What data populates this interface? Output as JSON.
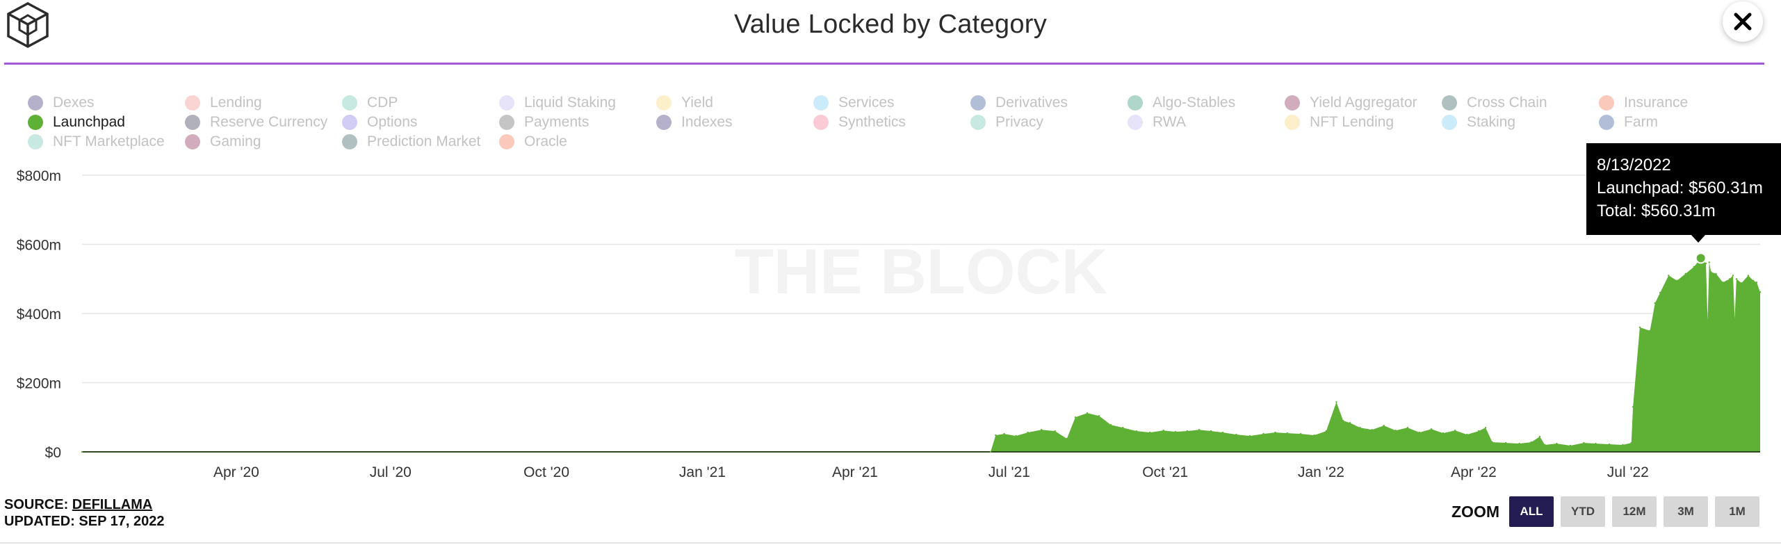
{
  "header": {
    "title": "Value Locked by Category",
    "logo_icon": "cube-logo-icon",
    "close_icon": "close-icon",
    "accent_color": "#a259d9"
  },
  "legend": {
    "items": [
      {
        "label": "Dexes",
        "color": "#2b2066",
        "visible": false
      },
      {
        "label": "Lending",
        "color": "#f08080",
        "visible": false
      },
      {
        "label": "CDP",
        "color": "#5fbfa8",
        "visible": false
      },
      {
        "label": "Liquid Staking",
        "color": "#b9b2f0",
        "visible": false
      },
      {
        "label": "Yield",
        "color": "#f5d36b",
        "visible": false
      },
      {
        "label": "Services",
        "color": "#6ec5f0",
        "visible": false
      },
      {
        "label": "Derivatives",
        "color": "#23418f",
        "visible": false
      },
      {
        "label": "Algo-Stables",
        "color": "#1e8a6a",
        "visible": false
      },
      {
        "label": "Yield Aggregator",
        "color": "#7a1040",
        "visible": false
      },
      {
        "label": "Cross Chain",
        "color": "#1e4a4a",
        "visible": false
      },
      {
        "label": "Insurance",
        "color": "#f0643c",
        "visible": false
      },
      {
        "label": "Launchpad",
        "color": "#5fb136",
        "visible": true
      },
      {
        "label": "Reserve Currency",
        "color": "#1d1f3d",
        "visible": false
      },
      {
        "label": "Options",
        "color": "#7c6fe0",
        "visible": false
      },
      {
        "label": "Payments",
        "color": "#5a5a5a",
        "visible": false
      },
      {
        "label": "Indexes",
        "color": "#2b2066",
        "visible": false
      },
      {
        "label": "Synthetics",
        "color": "#f06b84",
        "visible": false
      },
      {
        "label": "Privacy",
        "color": "#5fbfa8",
        "visible": false
      },
      {
        "label": "RWA",
        "color": "#b9b2f0",
        "visible": false
      },
      {
        "label": "NFT Lending",
        "color": "#f5d36b",
        "visible": false
      },
      {
        "label": "Staking",
        "color": "#6ec5f0",
        "visible": false
      },
      {
        "label": "Farm",
        "color": "#23418f",
        "visible": false
      },
      {
        "label": "NFT Marketplace",
        "color": "#5fbfa8",
        "visible": false
      },
      {
        "label": "Gaming",
        "color": "#7a1040",
        "visible": false
      },
      {
        "label": "Prediction Market",
        "color": "#1e4a4a",
        "visible": false
      },
      {
        "label": "Oracle",
        "color": "#f0643c",
        "visible": false
      }
    ]
  },
  "chart_data": {
    "type": "area",
    "title": "Value Locked by Category",
    "xlabel": "",
    "ylabel": "",
    "y_ticks": [
      "$0",
      "$200m",
      "$400m",
      "$600m",
      "$800m"
    ],
    "x_ticks": [
      "Apr '20",
      "Jul '20",
      "Oct '20",
      "Jan '21",
      "Apr '21",
      "Jul '21",
      "Oct '21",
      "Jan '22",
      "Apr '22",
      "Jul '22"
    ],
    "ylim": [
      0,
      800
    ],
    "y_unit": "$m",
    "xlim": [
      "2020-01-01",
      "2022-09-17"
    ],
    "grid": true,
    "legend_position": "top",
    "watermark": "THE BLOCK",
    "series": [
      {
        "name": "Launchpad",
        "color": "#5fb136",
        "x": [
          "2020-01-01",
          "2021-06-20",
          "2021-06-23",
          "2021-06-28",
          "2021-07-05",
          "2021-07-12",
          "2021-07-20",
          "2021-07-28",
          "2021-08-04",
          "2021-08-09",
          "2021-08-16",
          "2021-08-23",
          "2021-08-30",
          "2021-09-06",
          "2021-09-14",
          "2021-09-22",
          "2021-09-30",
          "2021-10-07",
          "2021-10-14",
          "2021-10-21",
          "2021-10-28",
          "2021-11-04",
          "2021-11-12",
          "2021-11-20",
          "2021-11-28",
          "2021-12-05",
          "2021-12-12",
          "2021-12-20",
          "2021-12-28",
          "2022-01-04",
          "2022-01-10",
          "2022-01-14",
          "2022-01-18",
          "2022-01-24",
          "2022-01-31",
          "2022-02-07",
          "2022-02-14",
          "2022-02-21",
          "2022-02-28",
          "2022-03-07",
          "2022-03-14",
          "2022-03-21",
          "2022-03-28",
          "2022-04-04",
          "2022-04-08",
          "2022-04-12",
          "2022-04-20",
          "2022-04-28",
          "2022-05-05",
          "2022-05-10",
          "2022-05-13",
          "2022-05-20",
          "2022-05-28",
          "2022-06-05",
          "2022-06-12",
          "2022-06-20",
          "2022-06-28",
          "2022-07-03",
          "2022-07-04",
          "2022-07-08",
          "2022-07-14",
          "2022-07-17",
          "2022-07-20",
          "2022-07-25",
          "2022-07-30",
          "2022-08-04",
          "2022-08-09",
          "2022-08-13",
          "2022-08-16",
          "2022-08-17",
          "2022-08-18",
          "2022-08-19",
          "2022-08-22",
          "2022-08-26",
          "2022-08-30",
          "2022-09-01",
          "2022-09-02",
          "2022-09-03",
          "2022-09-06",
          "2022-09-10",
          "2022-09-13",
          "2022-09-15",
          "2022-09-17"
        ],
        "values": [
          0,
          0,
          48,
          52,
          46,
          56,
          64,
          60,
          38,
          100,
          112,
          104,
          78,
          70,
          60,
          56,
          62,
          58,
          60,
          64,
          60,
          56,
          50,
          46,
          52,
          56,
          54,
          52,
          48,
          60,
          144,
          90,
          84,
          70,
          64,
          76,
          62,
          70,
          56,
          66,
          54,
          62,
          50,
          60,
          70,
          28,
          26,
          24,
          28,
          44,
          20,
          24,
          18,
          26,
          24,
          22,
          20,
          26,
          130,
          360,
          350,
          430,
          460,
          510,
          495,
          515,
          535,
          560,
          545,
          380,
          548,
          520,
          515,
          490,
          500,
          510,
          385,
          500,
          488,
          510,
          495,
          490,
          462
        ]
      }
    ]
  },
  "tooltip": {
    "date": "8/13/2022",
    "line1": "Launchpad: $560.31m",
    "line2": "Total: $560.31m"
  },
  "footer": {
    "source_label": "SOURCE: ",
    "source_link": "DEFILLAMA",
    "updated": "UPDATED: SEP 17, 2022",
    "zoom_label": "ZOOM",
    "zoom_options": [
      "ALL",
      "YTD",
      "12M",
      "3M",
      "1M"
    ],
    "zoom_active": "ALL"
  }
}
